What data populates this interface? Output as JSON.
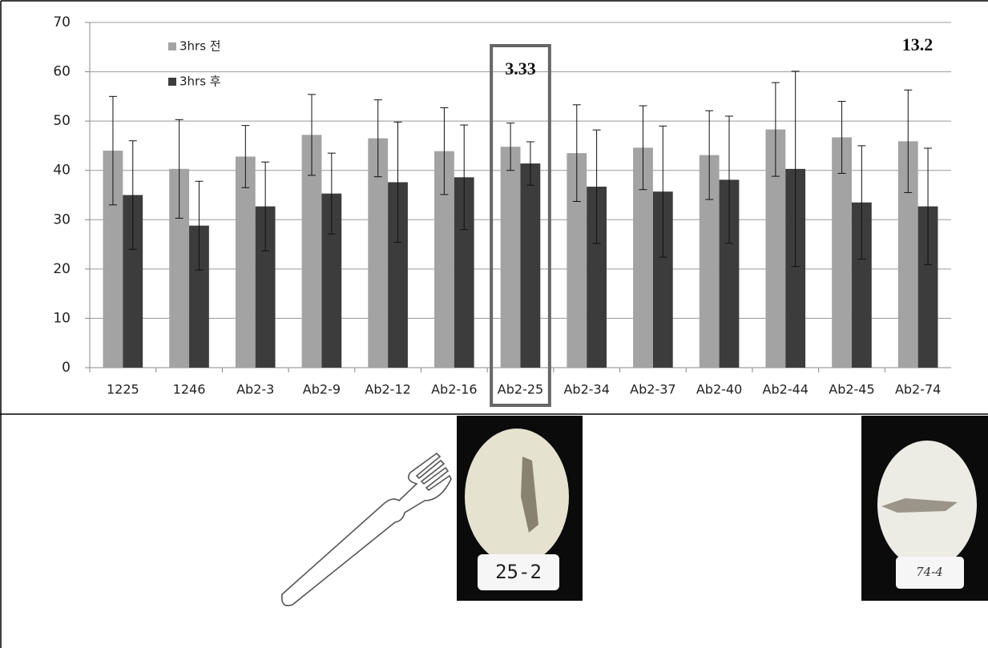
{
  "chart_data": {
    "type": "bar",
    "categories": [
      "1225",
      "1246",
      "Ab2-3",
      "Ab2-9",
      "Ab2-12",
      "Ab2-16",
      "Ab2-25",
      "Ab2-34",
      "Ab2-37",
      "Ab2-40",
      "Ab2-44",
      "Ab2-45",
      "Ab2-74"
    ],
    "series": [
      {
        "name": "3hrs 전",
        "color": "#a3a3a3",
        "values": [
          44,
          40.3,
          42.8,
          47.2,
          46.5,
          43.9,
          44.8,
          43.5,
          44.6,
          43.1,
          48.3,
          46.7,
          45.9
        ],
        "errors": [
          11,
          10,
          6.3,
          8.2,
          7.8,
          8.8,
          4.8,
          9.8,
          8.5,
          9,
          9.5,
          7.3,
          10.4
        ]
      },
      {
        "name": "3hrs 후",
        "color": "#3c3c3c",
        "values": [
          35,
          28.8,
          32.7,
          35.3,
          37.6,
          38.6,
          41.4,
          36.7,
          35.7,
          38.1,
          40.3,
          33.5,
          32.7
        ],
        "errors": [
          11,
          9,
          9,
          8.2,
          12.2,
          10.6,
          4.4,
          11.5,
          13.3,
          12.9,
          19.8,
          11.5,
          11.8
        ]
      }
    ],
    "ylim": [
      0,
      70
    ],
    "yticks": [
      0,
      10,
      20,
      30,
      40,
      50,
      60,
      70
    ],
    "grid": true,
    "legend": "upper left",
    "annotations": [
      "3.33",
      "13.2"
    ],
    "photo_labels": [
      "25-2",
      "74-4"
    ]
  }
}
